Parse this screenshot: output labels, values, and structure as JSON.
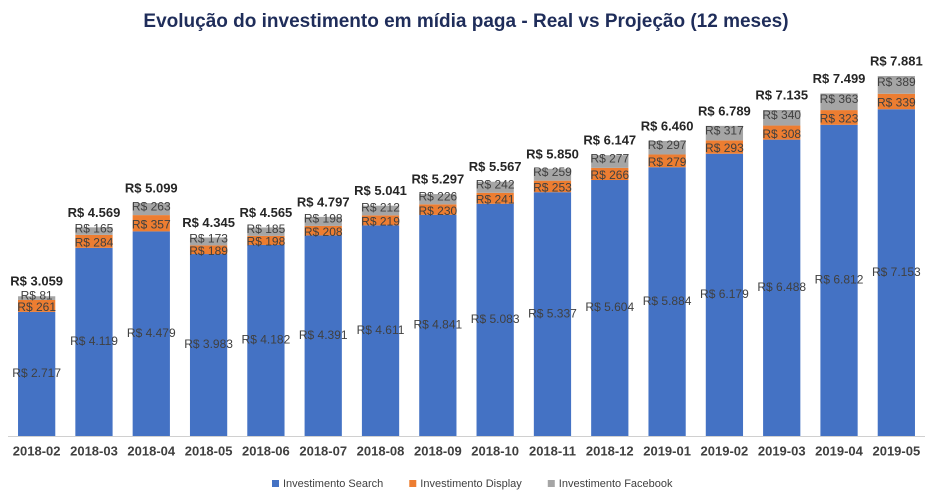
{
  "chart_data": {
    "type": "stacked-bar",
    "title": "Evolução do investimento em mídia paga - Real vs Projeção (12 meses)",
    "categories": [
      "2018-02",
      "2018-03",
      "2018-04",
      "2018-05",
      "2018-06",
      "2018-07",
      "2018-08",
      "2018-09",
      "2018-10",
      "2018-11",
      "2018-12",
      "2019-01",
      "2019-02",
      "2019-03",
      "2019-04",
      "2019-05"
    ],
    "series": [
      {
        "name": "Investimento Search",
        "color": "#4472c4",
        "values": [
          2717,
          4119,
          4479,
          3983,
          4182,
          4391,
          4611,
          4841,
          5083,
          5337,
          5604,
          5884,
          6179,
          6488,
          6812,
          7153
        ],
        "value_labels": [
          "R$ 2.717",
          "R$ 4.119",
          "R$ 4.479",
          "R$ 3.983",
          "R$ 4.182",
          "R$ 4.391",
          "R$ 4.611",
          "R$ 4.841",
          "R$ 5.083",
          "R$ 5.337",
          "R$ 5.604",
          "R$ 5.884",
          "R$ 6.179",
          "R$ 6.488",
          "R$ 6.812",
          "R$ 7.153"
        ]
      },
      {
        "name": "Investimento Display",
        "color": "#ed7d31",
        "values": [
          261,
          284,
          357,
          189,
          198,
          208,
          219,
          230,
          241,
          253,
          266,
          279,
          293,
          308,
          323,
          339
        ],
        "value_labels": [
          "R$ 261",
          "R$ 284",
          "R$ 357",
          "R$ 189",
          "R$ 198",
          "R$ 208",
          "R$ 219",
          "R$ 230",
          "R$ 241",
          "R$ 253",
          "R$ 266",
          "R$ 279",
          "R$ 293",
          "R$ 308",
          "R$ 323",
          "R$ 339"
        ]
      },
      {
        "name": "Investimento Facebook",
        "color": "#a5a5a5",
        "values": [
          81,
          165,
          263,
          173,
          185,
          198,
          212,
          226,
          242,
          259,
          277,
          297,
          317,
          340,
          363,
          389
        ],
        "value_labels": [
          "R$ 81",
          "R$ 165",
          "R$ 263",
          "R$ 173",
          "R$ 185",
          "R$ 198",
          "R$ 212",
          "R$ 226",
          "R$ 242",
          "R$ 259",
          "R$ 277",
          "R$ 297",
          "R$ 317",
          "R$ 340",
          "R$ 363",
          "R$ 389"
        ]
      }
    ],
    "totals": {
      "values": [
        3059,
        4569,
        5099,
        4345,
        4565,
        4797,
        5041,
        5297,
        5567,
        5850,
        6147,
        6460,
        6789,
        7135,
        7499,
        7881
      ],
      "value_labels": [
        "R$ 3.059",
        "R$ 4.569",
        "R$ 5.099",
        "R$ 4.345",
        "R$ 4.565",
        "R$ 4.797",
        "R$ 5.041",
        "R$ 5.297",
        "R$ 5.567",
        "R$ 5.850",
        "R$ 6.147",
        "R$ 6.460",
        "R$ 6.789",
        "R$ 7.135",
        "R$ 7.499",
        "R$ 7.881"
      ]
    },
    "ylim": [
      0,
      8450
    ],
    "legend": "bottom"
  }
}
